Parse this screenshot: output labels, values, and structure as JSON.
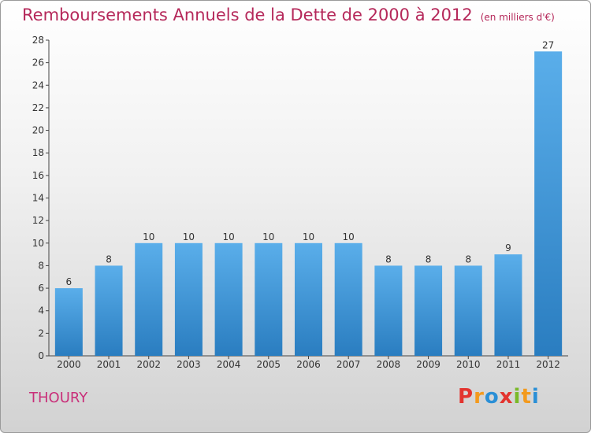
{
  "header": {
    "title": "Remboursements Annuels de la Dette de 2000 à 2012",
    "unit": "(en milliers d'€)"
  },
  "footer": {
    "town": "THOURY",
    "logo": "Proxiti"
  },
  "colors": {
    "title": "#b5285a",
    "town": "#c9307a",
    "bar_top": "#5aaeea",
    "bar_bottom": "#2a7dc0",
    "logo": [
      "#e3342f",
      "#f39a1e",
      "#2a8fd6",
      "#e3342f",
      "#7ab929",
      "#f39a1e",
      "#2a8fd6"
    ]
  },
  "chart_data": {
    "type": "bar",
    "title": "Remboursements Annuels de la Dette de 2000 à 2012",
    "subtitle": "(en milliers d'€)",
    "xlabel": "",
    "ylabel": "",
    "categories": [
      "2000",
      "2001",
      "2002",
      "2003",
      "2004",
      "2005",
      "2006",
      "2007",
      "2008",
      "2009",
      "2010",
      "2011",
      "2012"
    ],
    "values": [
      6,
      8,
      10,
      10,
      10,
      10,
      10,
      10,
      8,
      8,
      8,
      9,
      27
    ],
    "data_labels": [
      "6",
      "8",
      "10",
      "10",
      "10",
      "10",
      "10",
      "10",
      "8",
      "8",
      "8",
      "9",
      "27"
    ],
    "ylim": [
      0,
      28
    ],
    "yticks": [
      0,
      2,
      4,
      6,
      8,
      10,
      12,
      14,
      16,
      18,
      20,
      22,
      24,
      26,
      28
    ],
    "grid": false,
    "legend": "none"
  }
}
